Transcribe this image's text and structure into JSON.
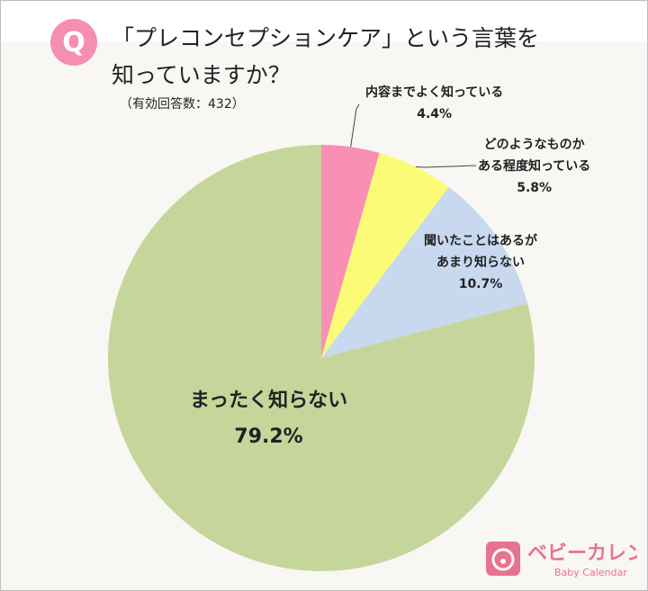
{
  "header": {
    "badge": "Q",
    "title_line1": "「プレコンセプションケア」という言葉を",
    "title_line2": "知っていますか？",
    "sample": "（有効回答数：432）"
  },
  "chart_data": {
    "type": "pie",
    "start": "top",
    "direction": "clockwise",
    "categories": [
      "内容までよく知っている",
      "どのようなものかある程度知っている",
      "聞いたことはあるがあまり知らない",
      "まったく知らない"
    ],
    "values": [
      4.4,
      5.8,
      10.7,
      79.2
    ],
    "value_labels": [
      "4.4%",
      "5.8%",
      "10.7%",
      "79.2%"
    ],
    "label_lines": [
      [
        "内容までよく知っている"
      ],
      [
        "どのようなものか",
        "ある程度知っている"
      ],
      [
        "聞いたことはあるが",
        "あまり知らない"
      ],
      [
        "まったく知らない"
      ]
    ],
    "colors": [
      "#f98fb3",
      "#fbfb78",
      "#c7d8ef",
      "#c6d69b"
    ],
    "unit": "%"
  },
  "logo": {
    "name": "ベビーカレンダー",
    "sub": "Baby Calendar",
    "color": "#e8738f"
  }
}
